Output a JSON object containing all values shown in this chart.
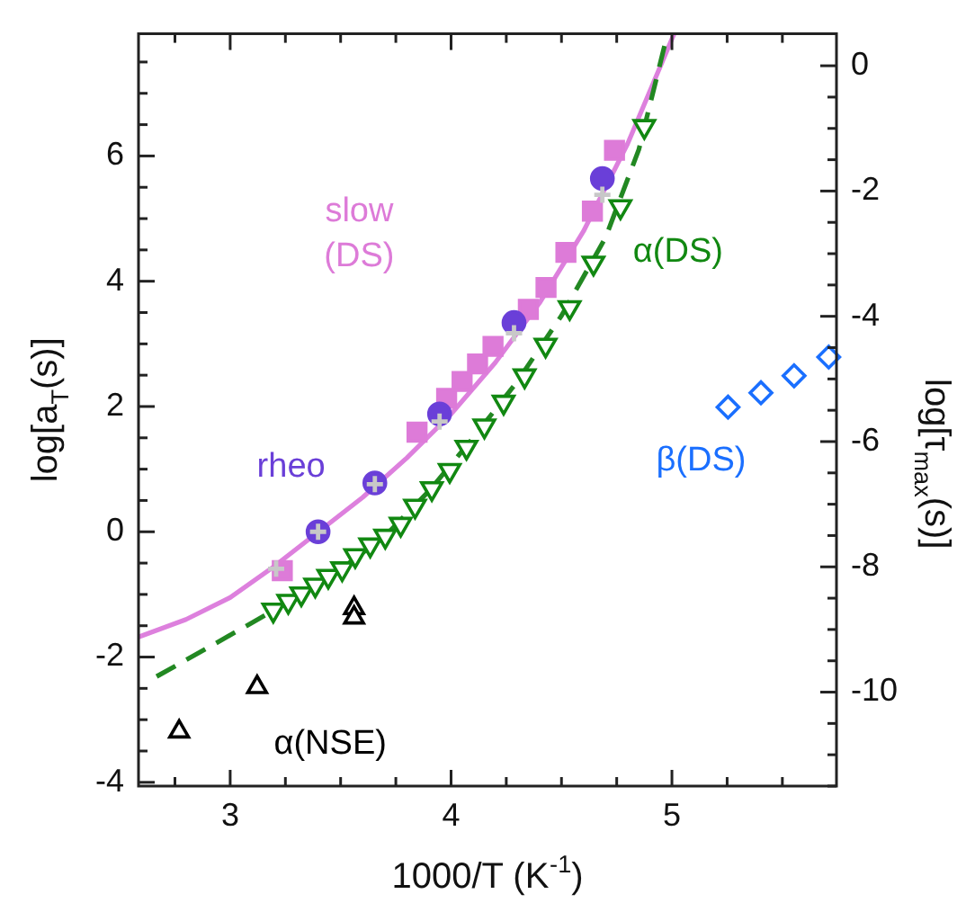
{
  "chart_data": {
    "type": "scatter",
    "xlabel": "1000/T (K$^{-1}$)",
    "ylabel": "log[a$_{T}$(s)]",
    "y2label": "log[τ$_{max}$(s)]",
    "xlim": [
      2.585,
      5.745
    ],
    "xticks": [
      {
        "value": 2.75,
        "label": null
      },
      3,
      {
        "value": 3.25,
        "label": null
      },
      {
        "value": 3.5,
        "label": null
      },
      {
        "value": 3.75,
        "label": null
      },
      4,
      {
        "value": 4.25,
        "label": null
      },
      {
        "value": 4.5,
        "label": null
      },
      {
        "value": 4.75,
        "label": null
      },
      5,
      {
        "value": 5.25,
        "label": null
      },
      {
        "value": 5.5,
        "label": null
      }
    ],
    "ylim": [
      -4.06,
      7.95
    ],
    "yticks": [
      -4,
      {
        "value": -3.5,
        "label": null
      },
      {
        "value": -3,
        "label": null
      },
      {
        "value": -2.5,
        "label": null
      },
      -2,
      {
        "value": -1.5,
        "label": null
      },
      {
        "value": -1,
        "label": null
      },
      {
        "value": -0.5,
        "label": null
      },
      0,
      {
        "value": 0.5,
        "label": null
      },
      {
        "value": 1,
        "label": null
      },
      {
        "value": 1.5,
        "label": null
      },
      2,
      {
        "value": 2.5,
        "label": null
      },
      {
        "value": 3,
        "label": null
      },
      {
        "value": 3.5,
        "label": null
      },
      4,
      {
        "value": 4.5,
        "label": null
      },
      {
        "value": 5,
        "label": null
      },
      {
        "value": 5.5,
        "label": null
      },
      6,
      {
        "value": 6.5,
        "label": null
      },
      {
        "value": 7,
        "label": null
      },
      {
        "value": 7.5,
        "label": null
      }
    ],
    "y2lim": [
      -11.5,
      0.51
    ],
    "y2ticks": [
      {
        "value": -11.5,
        "label": null
      },
      {
        "value": -11,
        "label": null
      },
      {
        "value": -10.5,
        "label": null
      },
      -10,
      {
        "value": -9.5,
        "label": null
      },
      {
        "value": -9,
        "label": null
      },
      {
        "value": -8.5,
        "label": null
      },
      -8,
      {
        "value": -7.5,
        "label": null
      },
      {
        "value": -7,
        "label": null
      },
      {
        "value": -6.5,
        "label": null
      },
      -6,
      {
        "value": -5.5,
        "label": null
      },
      {
        "value": -5,
        "label": null
      },
      {
        "value": -4.5,
        "label": null
      },
      -4,
      {
        "value": -3.5,
        "label": null
      },
      {
        "value": -3,
        "label": null
      },
      {
        "value": -2.5,
        "label": null
      },
      -2,
      {
        "value": -1.5,
        "label": null
      },
      {
        "value": -1,
        "label": null
      },
      {
        "value": -0.5,
        "label": null
      },
      0
    ],
    "grid": false,
    "legend": false,
    "series": [
      {
        "type": "line",
        "color": "#dd80dd",
        "line_style": "solid",
        "marker": "none",
        "x": [
          2.585,
          2.8,
          3.0,
          3.2,
          3.4,
          3.6,
          3.8,
          4.0,
          4.2,
          4.4,
          4.6,
          4.8,
          5.01
        ],
        "values": [
          -1.68,
          -1.4,
          -1.05,
          -0.55,
          0.0,
          0.55,
          1.18,
          1.88,
          2.7,
          3.65,
          4.8,
          6.2,
          7.95
        ]
      },
      {
        "type": "line",
        "color": "#228822",
        "line_style": "dashed",
        "marker": "none",
        "x": [
          2.667,
          2.9,
          3.1,
          3.3,
          3.5,
          3.7,
          3.9,
          4.1,
          4.3,
          4.5,
          4.7,
          4.85,
          4.98
        ],
        "values": [
          -2.31,
          -1.85,
          -1.45,
          -1.05,
          -0.6,
          -0.07,
          0.65,
          1.5,
          2.4,
          3.45,
          4.7,
          6.1,
          7.95
        ]
      },
      {
        "type": "scatter",
        "name": "slow (DS)",
        "color": "#dd7bd8",
        "marker": "square",
        "x": [
          3.236,
          3.846,
          3.91,
          3.98,
          4.05,
          4.12,
          4.19,
          4.27,
          4.35,
          4.43,
          4.52,
          4.64,
          4.74
        ],
        "values": [
          -0.62,
          1.59,
          null,
          2.13,
          2.4,
          2.68,
          2.96,
          null,
          3.55,
          3.9,
          4.46,
          5.12,
          6.09
        ]
      },
      {
        "type": "scatter",
        "name": "α(DS)",
        "color": "#118811",
        "marker": "triangle_down",
        "x": [
          3.195,
          3.263,
          3.322,
          3.385,
          3.444,
          3.507,
          3.566,
          3.634,
          3.702,
          3.772,
          3.837,
          3.913,
          3.994,
          4.07,
          4.151,
          4.238,
          4.333,
          4.428,
          4.537,
          4.645,
          4.767,
          4.875
        ],
        "values": [
          -1.25,
          -1.11,
          -0.99,
          -0.85,
          -0.71,
          -0.59,
          -0.38,
          -0.21,
          -0.07,
          0.12,
          0.41,
          0.69,
          0.98,
          1.35,
          1.69,
          2.07,
          2.49,
          2.98,
          3.58,
          4.29,
          5.19,
          6.47
        ]
      },
      {
        "type": "scatter",
        "name": "rheo",
        "color": "#6a3fd8",
        "marker": "circle",
        "x": [
          3.398,
          3.655,
          3.948,
          4.285,
          4.685
        ],
        "values": [
          0.0,
          0.78,
          1.88,
          3.34,
          5.64
        ]
      },
      {
        "type": "scatter",
        "color": "#c8c8c8",
        "marker": "cross",
        "x": [
          3.208,
          3.398,
          3.655,
          3.948,
          4.285,
          4.685
        ],
        "values": [
          -0.59,
          0.0,
          0.76,
          1.76,
          3.17,
          5.38
        ]
      },
      {
        "type": "scatter",
        "name": "α(NSE)",
        "color": "#000000",
        "marker": "triangle",
        "x": [
          2.769,
          3.122,
          3.561,
          3.561
        ],
        "values": [
          -3.19,
          -2.48,
          -1.22,
          -1.37
        ]
      },
      {
        "type": "scatter",
        "name": "β(DS)",
        "color": "#1a6fff",
        "marker": "diamond",
        "axis": "y2",
        "x": [
          5.254,
          5.403,
          5.553,
          5.71
        ],
        "values": [
          -5.45,
          -5.22,
          -4.95,
          -4.65
        ]
      }
    ]
  }
}
